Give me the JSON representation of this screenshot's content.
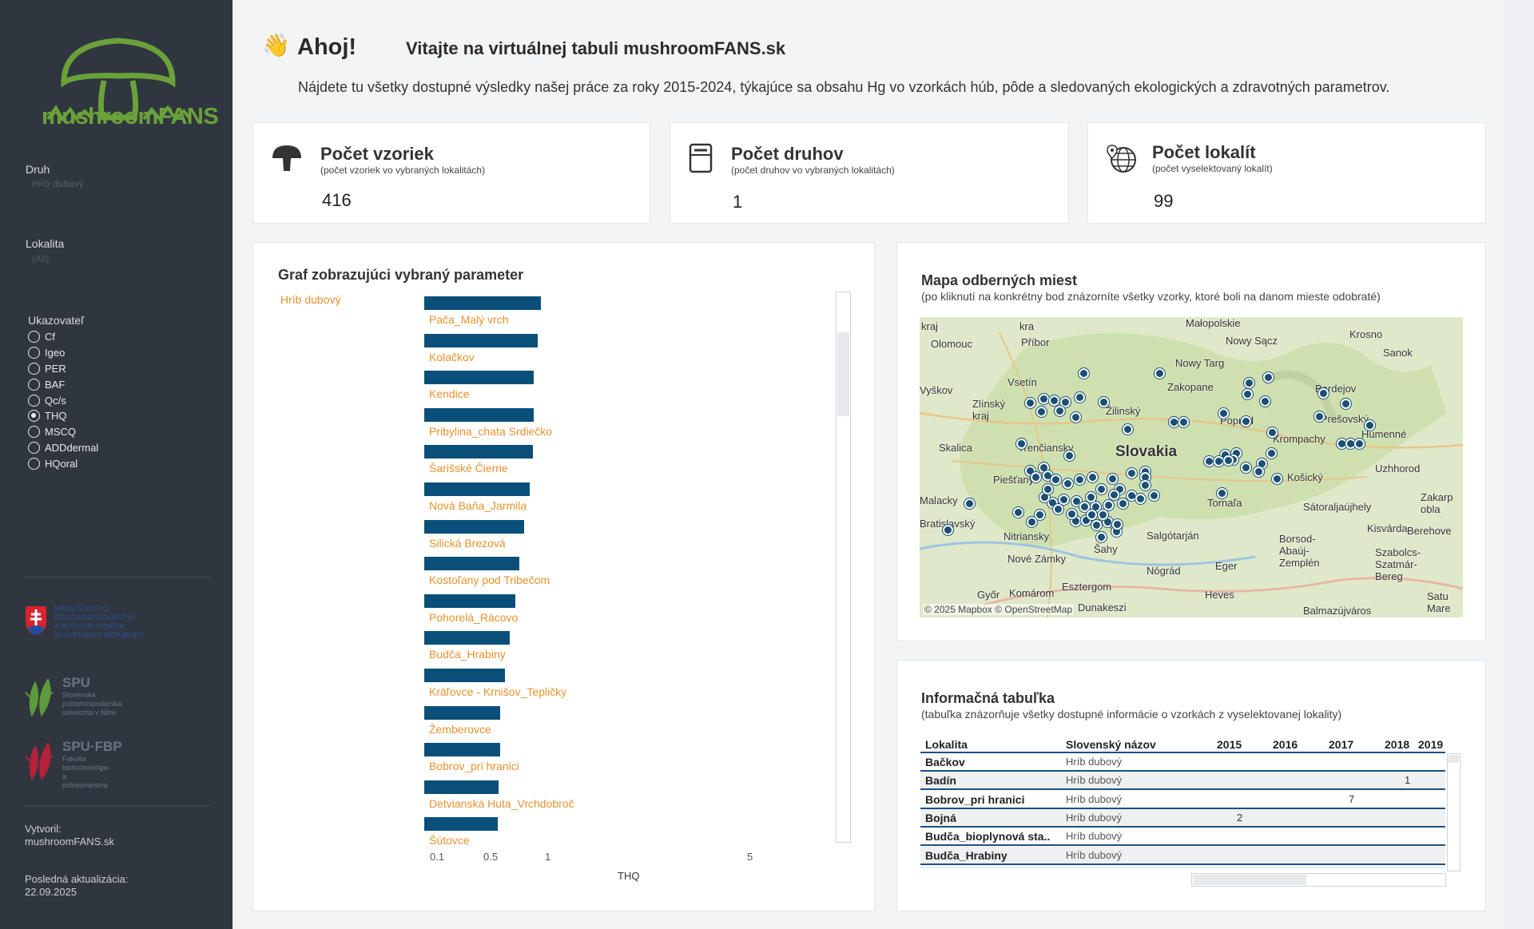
{
  "sidebar": {
    "logo_text": "mushroomFANS",
    "filters": [
      {
        "label": "Druh",
        "value": "Hríb dubový"
      },
      {
        "label": "Lokalita",
        "value": "(All)"
      }
    ],
    "indicator": {
      "title": "Ukazovateľ",
      "options": [
        {
          "label": "Cf",
          "selected": false
        },
        {
          "label": "Igeo",
          "selected": false
        },
        {
          "label": "PER",
          "selected": false
        },
        {
          "label": "BAF",
          "selected": false
        },
        {
          "label": "Qc/s",
          "selected": false
        },
        {
          "label": "THQ",
          "selected": true
        },
        {
          "label": "MSCQ",
          "selected": false
        },
        {
          "label": "ADDdermal",
          "selected": false
        },
        {
          "label": "HQoral",
          "selected": false
        }
      ]
    },
    "sponsors": {
      "ministry": "MINISTERSTVO\nPÔDOHOSPODÁRSTVA\nA ROZVOJA VIDIEKA\nSLOVENSKEJ REPUBLIKY",
      "spu_name": "SPU",
      "spu_text": "Slovenská\npoľnohospodárska\nuniverzita v Nitre",
      "fbp_name": "SPU·FBP",
      "fbp_text": "Fakulta\nbiotechnológie\na potravinárstva"
    },
    "footer": {
      "created_label": "Vytvoril:",
      "created_value": "mushroomFANS.sk",
      "updated_label": "Posledná aktualizácia:",
      "updated_value": "22.09.2025"
    }
  },
  "welcome": {
    "hand": "👋",
    "greeting": "Ahoj!",
    "title": "Vitajte na virtuálnej tabuli mushroomFANS.sk",
    "subtitle": "Nájdete tu všetky dostupné výsledky našej práce za roky 2015-2024, týkajúce sa obsahu Hg vo vzorkách húb, pôde a sledovaných ekologických a zdravotných parametrov."
  },
  "kpis": [
    {
      "title": "Počet vzoriek",
      "sub": "(počet vzoriek vo vybraných lokalitách)",
      "value": "416",
      "icon": "mushroom-icon"
    },
    {
      "title": "Počet druhov",
      "sub": "(počet druhov vo vybraných lokalitách)",
      "value": "1",
      "icon": "book-icon"
    },
    {
      "title": "Počet lokalít",
      "sub": "(počet vyselektovaný lokalít)",
      "value": "99",
      "icon": "globe-pin-icon"
    }
  ],
  "chart": {
    "title": "Graf zobrazujúci vybraný parameter",
    "category": "Hríb dubový",
    "x_title": "THQ",
    "x_ticks": [
      "0.1",
      "0.5",
      "1",
      "5"
    ]
  },
  "chart_data": {
    "type": "bar",
    "orientation": "horizontal",
    "xscale": "log",
    "group": "Hríb dubový",
    "categories": [
      "Pača_Malý vrch",
      "Kolačkov",
      "Kendice",
      "Pribylina_chata Srdiečko",
      "Šarišské Čierne",
      "Nová Baňa_Jarmila",
      "Silická Brezová",
      "Kostoľany pod Tribečom",
      "Pohorelá_Rácovo",
      "Budča_Hrabiny",
      "Kráľovce - Krnišov_Tepličky",
      "Žemberovce",
      "Bobrov_pri hranici",
      "Detvianská Huta_Vrchdobroč",
      "Šútovce"
    ],
    "values": [
      0.87,
      0.83,
      0.77,
      0.76,
      0.75,
      0.71,
      0.64,
      0.59,
      0.54,
      0.49,
      0.45,
      0.41,
      0.41,
      0.4,
      0.39
    ],
    "xlabel": "THQ",
    "xlim": [
      0.1,
      5
    ]
  },
  "map": {
    "title": "Mapa odberných miest",
    "subtitle": "(po kliknutí na konkrétny bod znázorníte všetky vzorky, ktoré boli na danom mieste odobraté)",
    "attribution": "© 2025 Mapbox © OpenStreetMap",
    "labels": [
      {
        "t": "kraj",
        "x": 2,
        "y": 4
      },
      {
        "t": "kra",
        "x": 125,
        "y": 4
      },
      {
        "t": "Małopolskie",
        "x": 333,
        "y": 0
      },
      {
        "t": "Olomouc",
        "x": 14,
        "y": 26
      },
      {
        "t": "Příbor",
        "x": 127,
        "y": 24
      },
      {
        "t": "Nowy Sącz",
        "x": 383,
        "y": 22
      },
      {
        "t": "Krosno",
        "x": 538,
        "y": 14
      },
      {
        "t": "Sanok",
        "x": 580,
        "y": 37
      },
      {
        "t": "Nowy Targ",
        "x": 320,
        "y": 50
      },
      {
        "t": "Vsetín",
        "x": 110,
        "y": 74
      },
      {
        "t": "Zakopane",
        "x": 310,
        "y": 80
      },
      {
        "t": "Vyškov",
        "x": 0,
        "y": 84
      },
      {
        "t": "Zlínský\nkraj",
        "x": 66,
        "y": 101
      },
      {
        "t": "Žilinský",
        "x": 233,
        "y": 110
      },
      {
        "t": "Bardejov",
        "x": 495,
        "y": 82
      },
      {
        "t": "Prešovský",
        "x": 502,
        "y": 120
      },
      {
        "t": "Poprad",
        "x": 376,
        "y": 122
      },
      {
        "t": "Krompachy",
        "x": 442,
        "y": 145
      },
      {
        "t": "Skalica",
        "x": 24,
        "y": 156
      },
      {
        "t": "Trenčiansky",
        "x": 123,
        "y": 156
      },
      {
        "t": "Slovakia",
        "x": 245,
        "y": 158
      },
      {
        "t": "Humenné",
        "x": 553,
        "y": 139
      },
      {
        "t": "Piešťany",
        "x": 92,
        "y": 196
      },
      {
        "t": "Košický",
        "x": 460,
        "y": 193
      },
      {
        "t": "Uzhhorod",
        "x": 570,
        "y": 182
      },
      {
        "t": "Malacky",
        "x": 0,
        "y": 222
      },
      {
        "t": "Tornaľa",
        "x": 360,
        "y": 225
      },
      {
        "t": "Sátoraljaújhely",
        "x": 480,
        "y": 230
      },
      {
        "t": "Zakarp\nobla",
        "x": 627,
        "y": 218
      },
      {
        "t": "Bratislavský",
        "x": 0,
        "y": 251
      },
      {
        "t": "Nitriansky",
        "x": 105,
        "y": 267
      },
      {
        "t": "Salgótarján",
        "x": 284,
        "y": 266
      },
      {
        "t": "Kisvárda",
        "x": 560,
        "y": 257
      },
      {
        "t": "Berehove",
        "x": 610,
        "y": 260
      },
      {
        "t": "Nové Zámky",
        "x": 110,
        "y": 295
      },
      {
        "t": "Šahy",
        "x": 218,
        "y": 283
      },
      {
        "t": "Borsod-\nAbaúj-\nZemplén",
        "x": 450,
        "y": 270
      },
      {
        "t": "Szabolcs-\nSzatmár-\nBereg",
        "x": 570,
        "y": 287
      },
      {
        "t": "Eger",
        "x": 370,
        "y": 304
      },
      {
        "t": "Nógrád",
        "x": 284,
        "y": 310
      },
      {
        "t": "Esztergom",
        "x": 178,
        "y": 330
      },
      {
        "t": "Komárom",
        "x": 112,
        "y": 338
      },
      {
        "t": "Heves",
        "x": 357,
        "y": 340
      },
      {
        "t": "Győr",
        "x": 72,
        "y": 340
      },
      {
        "t": "Dunakeszi",
        "x": 198,
        "y": 356
      },
      {
        "t": "Balmazújváros",
        "x": 480,
        "y": 360
      },
      {
        "t": "Satu\nMare",
        "x": 635,
        "y": 342
      }
    ],
    "points": [
      [
        205,
        70
      ],
      [
        300,
        70
      ],
      [
        155,
        102
      ],
      [
        168,
        104
      ],
      [
        182,
        106
      ],
      [
        200,
        100
      ],
      [
        138,
        107
      ],
      [
        230,
        106
      ],
      [
        152,
        118
      ],
      [
        175,
        117
      ],
      [
        195,
        125
      ],
      [
        260,
        140
      ],
      [
        318,
        131
      ],
      [
        330,
        131
      ],
      [
        380,
        120
      ],
      [
        408,
        130
      ],
      [
        432,
        105
      ],
      [
        410,
        96
      ],
      [
        412,
        82
      ],
      [
        436,
        75
      ],
      [
        505,
        95
      ],
      [
        533,
        108
      ],
      [
        500,
        124
      ],
      [
        528,
        158
      ],
      [
        539,
        158
      ],
      [
        550,
        158
      ],
      [
        563,
        135
      ],
      [
        441,
        144
      ],
      [
        440,
        170
      ],
      [
        428,
        183
      ],
      [
        424,
        193
      ],
      [
        447,
        202
      ],
      [
        382,
        172
      ],
      [
        396,
        170
      ],
      [
        392,
        178
      ],
      [
        362,
        180
      ],
      [
        374,
        180
      ],
      [
        386,
        179
      ],
      [
        408,
        188
      ],
      [
        378,
        220
      ],
      [
        127,
        158
      ],
      [
        187,
        173
      ],
      [
        155,
        188
      ],
      [
        138,
        192
      ],
      [
        160,
        198
      ],
      [
        145,
        200
      ],
      [
        170,
        203
      ],
      [
        185,
        208
      ],
      [
        200,
        203
      ],
      [
        216,
        200
      ],
      [
        241,
        202
      ],
      [
        265,
        195
      ],
      [
        282,
        193
      ],
      [
        250,
        215
      ],
      [
        265,
        223
      ],
      [
        276,
        227
      ],
      [
        293,
        223
      ],
      [
        227,
        215
      ],
      [
        243,
        222
      ],
      [
        236,
        235
      ],
      [
        254,
        233
      ],
      [
        220,
        237
      ],
      [
        196,
        230
      ],
      [
        180,
        228
      ],
      [
        166,
        232
      ],
      [
        156,
        225
      ],
      [
        160,
        215
      ],
      [
        173,
        240
      ],
      [
        150,
        247
      ],
      [
        140,
        256
      ],
      [
        214,
        225
      ],
      [
        195,
        255
      ],
      [
        208,
        254
      ],
      [
        221,
        260
      ],
      [
        235,
        256
      ],
      [
        246,
        262
      ],
      [
        227,
        275
      ],
      [
        246,
        268
      ],
      [
        190,
        246
      ],
      [
        206,
        237
      ],
      [
        215,
        247
      ],
      [
        229,
        247
      ],
      [
        35,
        266
      ],
      [
        62,
        233
      ],
      [
        123,
        244
      ],
      [
        247,
        259
      ],
      [
        282,
        200
      ],
      [
        282,
        210
      ]
    ]
  },
  "table": {
    "title": "Informačná tabuľka",
    "subtitle": "(tabuľka znázorňuje všetky dostupné informácie o vzorkách z vyselektovanej lokality)",
    "columns": [
      "Lokalita",
      "Slovenský názov",
      "2015",
      "2016",
      "2017",
      "2018",
      "2019"
    ],
    "rows": [
      {
        "loc": "Bačkov",
        "name": "Hríb dubový",
        "y2015": "",
        "y2016": "",
        "y2017": "",
        "y2018": ""
      },
      {
        "loc": "Badín",
        "name": "Hríb dubový",
        "y2015": "",
        "y2016": "",
        "y2017": "",
        "y2018": "1"
      },
      {
        "loc": "Bobrov_pri hranici",
        "name": "Hríb dubový",
        "y2015": "",
        "y2016": "",
        "y2017": "7",
        "y2018": ""
      },
      {
        "loc": "Bojná",
        "name": "Hríb dubový",
        "y2015": "2",
        "y2016": "",
        "y2017": "",
        "y2018": ""
      },
      {
        "loc": "Budča_bioplynová sta..",
        "name": "Hríb dubový",
        "y2015": "",
        "y2016": "",
        "y2017": "",
        "y2018": ""
      },
      {
        "loc": "Budča_Hrabiny",
        "name": "Hríb dubový",
        "y2015": "",
        "y2016": "",
        "y2017": "",
        "y2018": ""
      }
    ]
  }
}
